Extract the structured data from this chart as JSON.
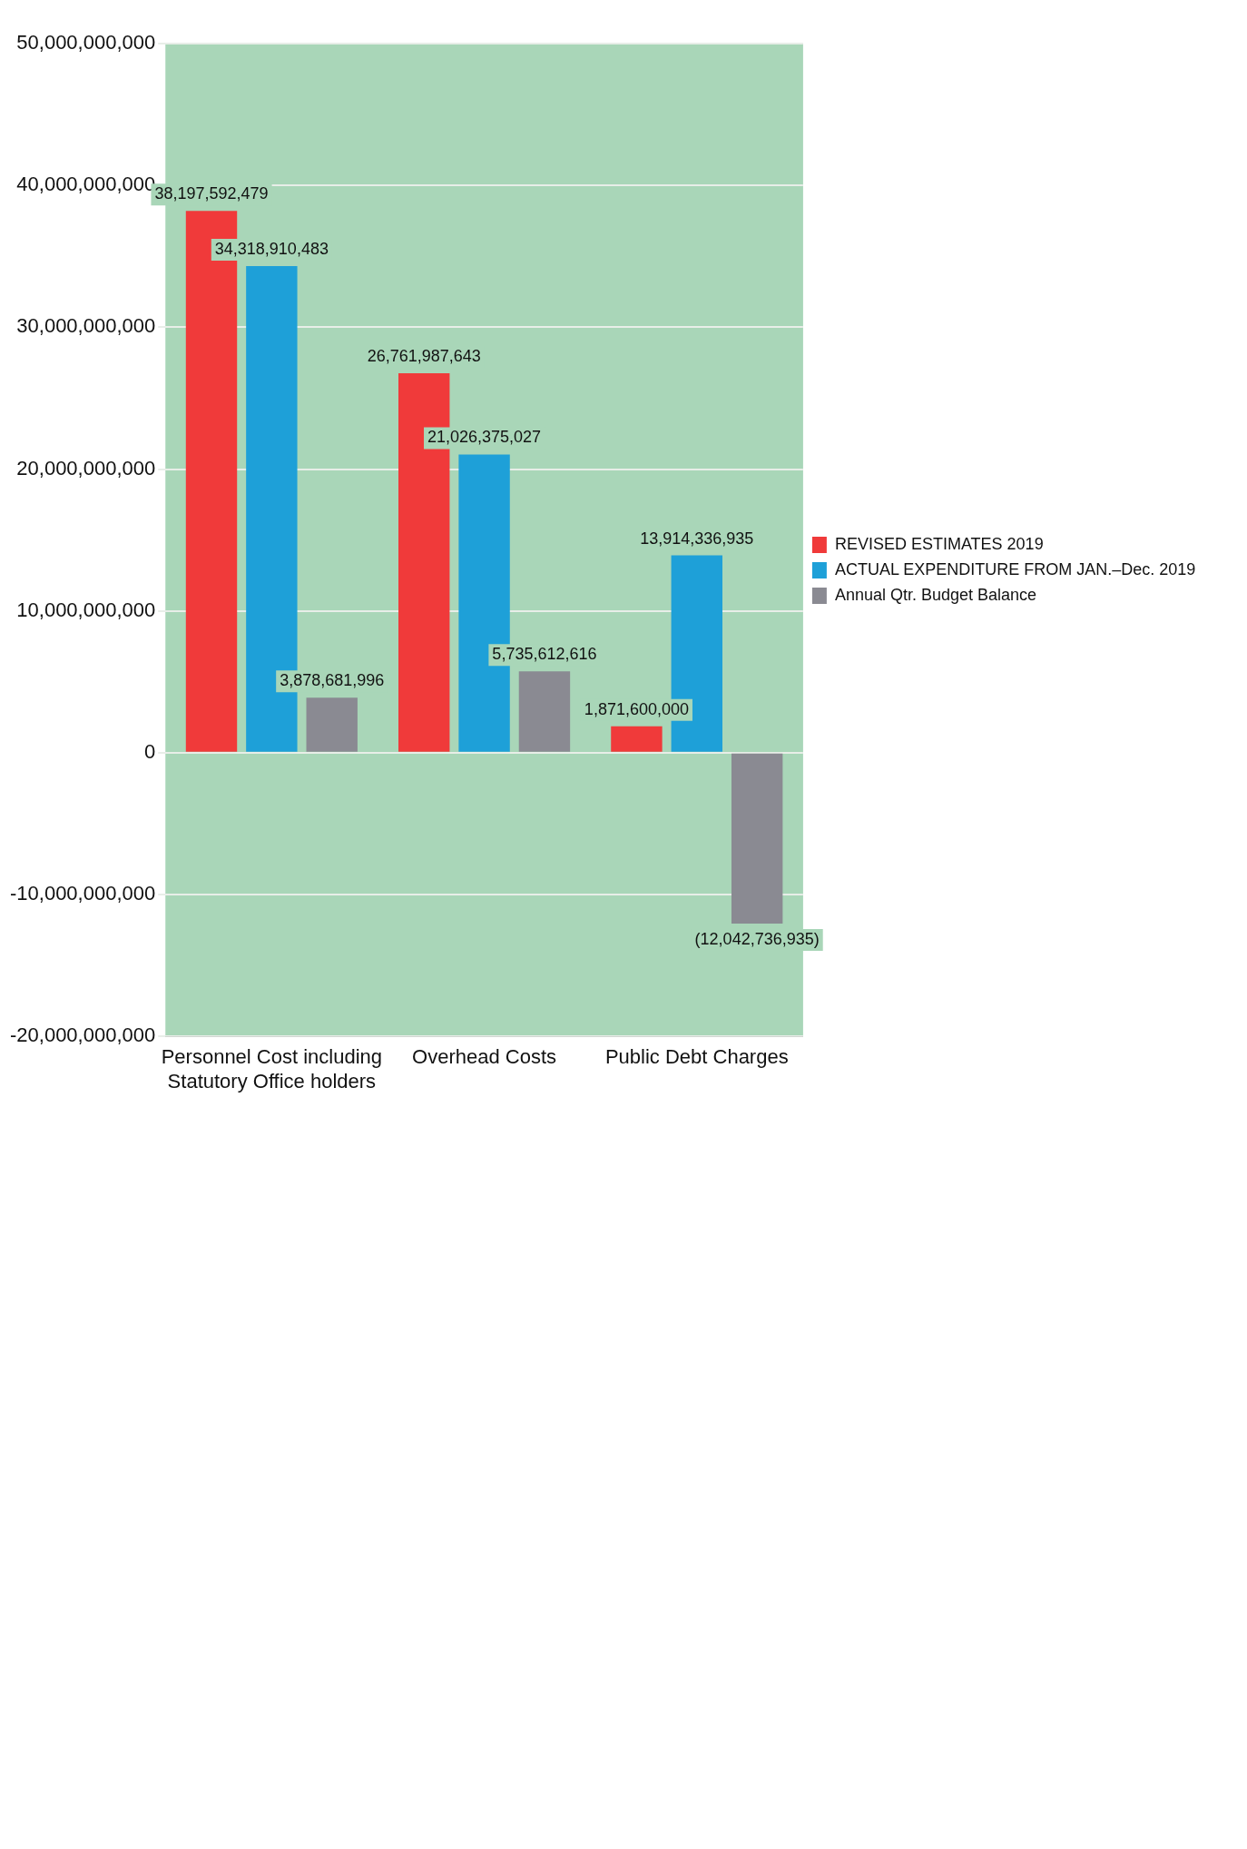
{
  "chart_data": {
    "type": "bar",
    "categories": [
      "Personnel Cost including Statutory Office holders",
      "Overhead Costs",
      "Public Debt Charges"
    ],
    "series": [
      {
        "name": "REVISED ESTIMATES 2019",
        "color": "#f03a3a",
        "values": [
          38197592479,
          26761987643,
          1871600000
        ],
        "value_labels": [
          "38,197,592,479",
          "26,761,987,643",
          "1,871,600,000"
        ]
      },
      {
        "name": "ACTUAL EXPENDITURE FROM JAN.–Dec. 2019",
        "color": "#1ea0d8",
        "values": [
          34318910483,
          21026375027,
          13914336935
        ],
        "value_labels": [
          "34,318,910,483",
          "21,026,375,027",
          "13,914,336,935"
        ]
      },
      {
        "name": "Annual Qtr. Budget Balance",
        "color": "#8a8a92",
        "values": [
          3878681996,
          5735612616,
          -12042736935
        ],
        "value_labels": [
          "3,878,681,996",
          "5,735,612,616",
          "(12,042,736,935)"
        ]
      }
    ],
    "ylim": [
      -20000000000,
      50000000000
    ],
    "yticks": [
      {
        "value": -20000000000,
        "label": "-20,000,000,000"
      },
      {
        "value": -10000000000,
        "label": "-10,000,000,000"
      },
      0,
      {
        "value": 10000000000,
        "label": "10,000,000,000"
      },
      {
        "value": 20000000000,
        "label": "20,000,000,000"
      },
      {
        "value": 30000000000,
        "label": "30,000,000,000"
      },
      {
        "value": 40000000000,
        "label": "40,000,000,000"
      },
      {
        "value": 50000000000,
        "label": "50,000,000,000"
      }
    ],
    "grid": "y",
    "legend": "right"
  }
}
